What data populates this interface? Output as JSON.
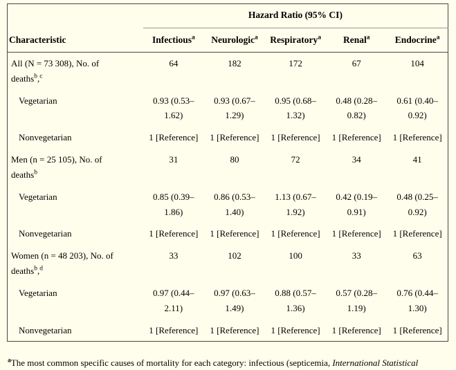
{
  "table": {
    "span_header": "Hazard Ratio (95% CI)",
    "characteristic_header": "Characteristic",
    "columns": [
      {
        "label": "Infectious",
        "sup": "a"
      },
      {
        "label": "Neurologic",
        "sup": "a"
      },
      {
        "label": "Respiratory",
        "sup": "a"
      },
      {
        "label": "Renal",
        "sup": "a"
      },
      {
        "label": "Endocrine",
        "sup": "a"
      }
    ],
    "rows": [
      {
        "label": "All (N = 73 308), No. of deaths",
        "sups": [
          "b",
          "c"
        ],
        "indent": false,
        "values": [
          "64",
          "182",
          "172",
          "67",
          "104"
        ]
      },
      {
        "label": "Vegetarian",
        "sups": [],
        "indent": true,
        "values": [
          "0.93 (0.53–1.62)",
          "0.93 (0.67–1.29)",
          "0.95 (0.68–1.32)",
          "0.48 (0.28–0.82)",
          "0.61 (0.40–0.92)"
        ]
      },
      {
        "label": "Nonvegetarian",
        "sups": [],
        "indent": true,
        "values": [
          "1 [Reference]",
          "1 [Reference]",
          "1 [Reference]",
          "1 [Reference]",
          "1 [Reference]"
        ]
      },
      {
        "label": "Men (n = 25 105), No. of deaths",
        "sups": [
          "b"
        ],
        "indent": false,
        "values": [
          "31",
          "80",
          "72",
          "34",
          "41"
        ]
      },
      {
        "label": "Vegetarian",
        "sups": [],
        "indent": true,
        "values": [
          "0.85 (0.39–1.86)",
          "0.86 (0.53–1.40)",
          "1.13 (0.67–1.92)",
          "0.42 (0.19–0.91)",
          "0.48 (0.25–0.92)"
        ]
      },
      {
        "label": "Nonvegetarian",
        "sups": [],
        "indent": true,
        "values": [
          "1 [Reference]",
          "1 [Reference]",
          "1 [Reference]",
          "1 [Reference]",
          "1 [Reference]"
        ]
      },
      {
        "label": "Women (n = 48 203), No. of deaths",
        "sups": [
          "b",
          "d"
        ],
        "indent": false,
        "values": [
          "33",
          "102",
          "100",
          "33",
          "63"
        ]
      },
      {
        "label": "Vegetarian",
        "sups": [],
        "indent": true,
        "values": [
          "0.97 (0.44–2.11)",
          "0.97 (0.63–1.49)",
          "0.88 (0.57–1.36)",
          "0.57 (0.28–1.19)",
          "0.76 (0.44–1.30)"
        ]
      },
      {
        "label": "Nonvegetarian",
        "sups": [],
        "indent": true,
        "values": [
          "1 [Reference]",
          "1 [Reference]",
          "1 [Reference]",
          "1 [Reference]",
          "1 [Reference]"
        ]
      }
    ]
  },
  "footnote": {
    "marker": "a",
    "text": "The most common specific causes of mortality for each category: infectious (septicemia, ",
    "italic": "International Statistical"
  },
  "colors": {
    "background": "#fffeec",
    "table_border": "#474747",
    "span_rule": "#979797",
    "text": "#000000"
  }
}
